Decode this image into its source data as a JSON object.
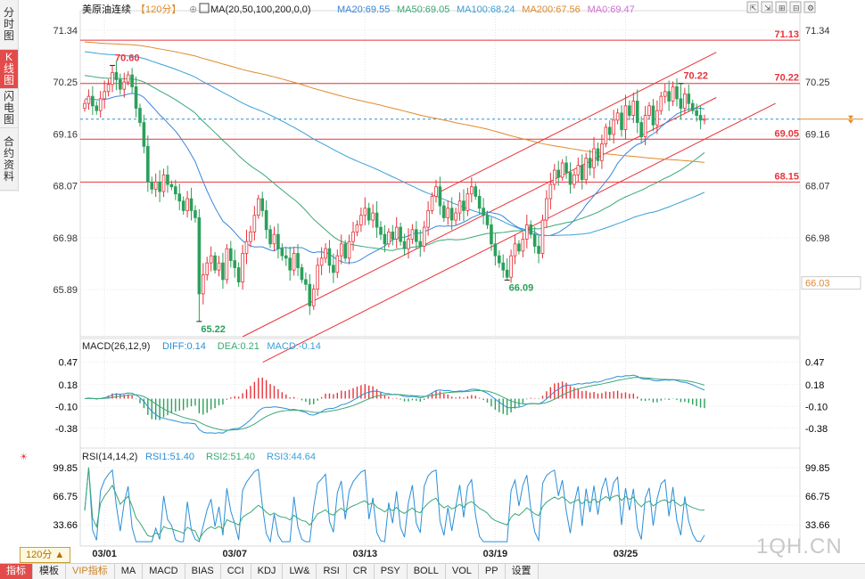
{
  "left_tabs": [
    "分时图",
    "K线图",
    "闪电图",
    "合约资料"
  ],
  "active_tab": 1,
  "header": {
    "symbol": "美原油连续",
    "period": "【120分】",
    "ma_params": "MA(20,50,100,200,0,0)",
    "ma_items": [
      {
        "label": "MA20:69.55",
        "color": "#3a86d8"
      },
      {
        "label": "MA50:69.05",
        "color": "#3aa876"
      },
      {
        "label": "MA100:68.24",
        "color": "#3aa0d8"
      },
      {
        "label": "MA200:67.56",
        "color": "#e08a2c"
      },
      {
        "label": "MA0:69.47",
        "color": "#d070d0"
      }
    ]
  },
  "period_button": "120分 ▲",
  "watermark": "1QH.CN",
  "bottom_tabs": [
    "指标",
    "模板",
    "VIP指标",
    "MA",
    "MACD",
    "BIAS",
    "CCI",
    "KDJ",
    "LW&",
    "RSI",
    "CR",
    "PSY",
    "BOLL",
    "VOL",
    "PP",
    "设置"
  ],
  "colors": {
    "up": "#e8333a",
    "down": "#2aa05a",
    "grid": "#c8c8c8"
  },
  "chart_data": {
    "type": "candlestick",
    "price_axis": {
      "ticks": [
        "71.34",
        "70.25",
        "69.16",
        "68.07",
        "66.98",
        "65.89"
      ],
      "ylim": [
        64.9,
        71.6
      ]
    },
    "right_labels": [
      {
        "text": "71.34",
        "value": 71.34
      },
      {
        "text": "70.25",
        "value": 70.25
      },
      {
        "text": "69.16",
        "value": 69.16
      },
      {
        "text": "68.07",
        "value": 68.07
      },
      {
        "text": "66.98",
        "value": 66.98
      },
      {
        "text": "66.03",
        "value": 66.03,
        "boxed": true,
        "color": "#e08a2c"
      }
    ],
    "x_ticks": [
      {
        "label": "03/01",
        "i": 5
      },
      {
        "label": "03/07",
        "i": 38
      },
      {
        "label": "03/13",
        "i": 71
      },
      {
        "label": "03/19",
        "i": 104
      },
      {
        "label": "03/25",
        "i": 137
      }
    ],
    "hlines": [
      {
        "value": 71.13,
        "label": "71.13",
        "color": "#e8333a"
      },
      {
        "value": 70.22,
        "label": "70.22",
        "color": "#e8333a"
      },
      {
        "value": 69.05,
        "label": "69.05",
        "color": "#e8333a"
      },
      {
        "value": 68.15,
        "label": "68.15",
        "color": "#e8333a"
      }
    ],
    "last_price": 69.47,
    "annotations": [
      {
        "text": "70.60",
        "i": 7,
        "value": 70.6,
        "color": "#e8333a"
      },
      {
        "text": "65.22",
        "i": 29,
        "value": 65.22,
        "color": "#2aa05a"
      },
      {
        "text": "66.09",
        "i": 107,
        "value": 66.09,
        "color": "#2aa05a"
      },
      {
        "text": "70.22",
        "i": 151,
        "value": 70.22,
        "color": "#e8333a"
      }
    ],
    "channel": {
      "from": [
        40,
        64.9
      ],
      "to": [
        200,
        71.6
      ]
    },
    "closes": [
      69.8,
      69.95,
      69.75,
      69.65,
      69.9,
      70.05,
      70.2,
      70.45,
      70.3,
      70.1,
      70.25,
      70.4,
      70.15,
      69.7,
      69.4,
      68.9,
      68.15,
      68.0,
      68.15,
      67.95,
      68.3,
      68.1,
      68.05,
      67.9,
      67.75,
      67.55,
      67.8,
      67.55,
      67.4,
      65.8,
      66.2,
      66.45,
      66.6,
      66.3,
      66.45,
      66.1,
      66.75,
      66.5,
      66.35,
      66.05,
      66.65,
      66.9,
      67.1,
      67.45,
      67.8,
      67.55,
      67.15,
      66.85,
      67.05,
      66.75,
      66.6,
      66.55,
      66.3,
      66.65,
      66.35,
      66.1,
      66.0,
      65.55,
      65.9,
      66.4,
      66.55,
      66.75,
      66.4,
      66.25,
      66.6,
      66.85,
      66.55,
      66.9,
      67.1,
      67.25,
      67.45,
      67.6,
      67.35,
      67.5,
      67.2,
      67.05,
      66.85,
      67.1,
      66.95,
      67.2,
      66.9,
      66.75,
      66.95,
      67.15,
      66.9,
      66.8,
      67.2,
      67.55,
      67.85,
      68.05,
      67.65,
      67.4,
      67.6,
      67.35,
      67.5,
      67.75,
      67.55,
      67.9,
      68.05,
      67.85,
      67.6,
      67.45,
      67.25,
      66.85,
      66.6,
      66.45,
      66.3,
      66.15,
      66.6,
      66.85,
      66.7,
      66.95,
      67.25,
      67.05,
      66.8,
      66.65,
      67.35,
      67.8,
      68.1,
      68.4,
      68.25,
      68.55,
      68.35,
      68.1,
      68.3,
      68.5,
      68.2,
      68.65,
      68.45,
      68.85,
      68.6,
      68.95,
      69.3,
      69.15,
      69.45,
      69.6,
      69.25,
      69.75,
      69.55,
      69.85,
      69.4,
      69.1,
      69.55,
      69.75,
      69.35,
      69.65,
      69.95,
      70.05,
      69.85,
      70.15,
      69.9,
      69.7,
      70.0,
      69.8,
      69.65,
      69.55,
      69.45,
      69.47
    ],
    "ma_series_names": [
      "MA20",
      "MA50",
      "MA100",
      "MA200"
    ],
    "macd": {
      "params": "MACD(26,12,9)",
      "items": [
        {
          "label": "DIFF:0.14",
          "color": "#2a8fd8"
        },
        {
          "label": "DEA:0.21",
          "color": "#3aa876"
        },
        {
          "label": "MACD:-0.14",
          "color": "#3aa0d8"
        }
      ],
      "ticks": [
        "0.47",
        "0.18",
        "-0.10",
        "-0.38"
      ],
      "ylim": [
        -0.6,
        0.6
      ]
    },
    "rsi": {
      "params": "RSI(14,14,2)",
      "items": [
        {
          "label": "RSI1:51.40",
          "color": "#2a8fd8"
        },
        {
          "label": "RSI2:51.40",
          "color": "#3aa876"
        },
        {
          "label": "RSI3:44.64",
          "color": "#3aa0d8"
        }
      ],
      "ticks": [
        "99.85",
        "66.75",
        "33.66"
      ],
      "ylim": [
        10,
        108
      ]
    }
  }
}
